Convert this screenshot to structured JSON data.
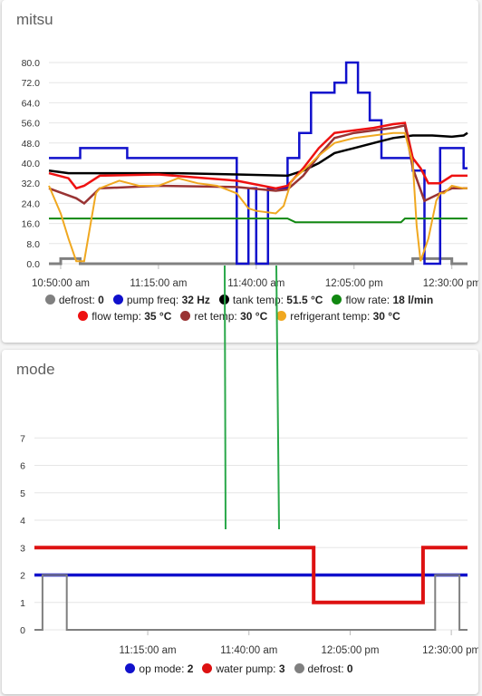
{
  "colors": {
    "defrost": "#808080",
    "pump_freq": "#1010cc",
    "tank_temp": "#000000",
    "flow_rate": "#118811",
    "flow_temp": "#ee1111",
    "ret_temp": "#993333",
    "refrigerant_temp": "#f0a820",
    "op_mode": "#1111cc",
    "water_pump": "#dd1111",
    "annotation": "#2aa84a"
  },
  "chart_data": [
    {
      "title": "mitsu",
      "type": "line",
      "x_unit": "minutes after 10:50:00 am",
      "xlim": [
        -3,
        104
      ],
      "ylim": [
        0,
        80
      ],
      "grid": true,
      "y_ticks": [
        "0.0",
        "8.0",
        "16.0",
        "24.0",
        "32.0",
        "40.0",
        "48.0",
        "56.0",
        "64.0",
        "72.0",
        "80.0"
      ],
      "x_ticks": [
        {
          "label": "10:50:00 am",
          "x": 0
        },
        {
          "label": "11:15:00 am",
          "x": 25
        },
        {
          "label": "11:40:00 am",
          "x": 50
        },
        {
          "label": "12:05:00 pm",
          "x": 75
        },
        {
          "label": "12:30:00 pm",
          "x": 100
        }
      ],
      "series": [
        {
          "name": "defrost",
          "value": "0",
          "color_key": "defrost",
          "width": 3,
          "step": true,
          "x": [
            -3,
            0,
            0,
            5,
            5,
            90,
            90,
            100,
            100,
            104
          ],
          "y": [
            0,
            0,
            2,
            2,
            0,
            0,
            2,
            2,
            0,
            0
          ]
        },
        {
          "name": "pump freq",
          "value": "32 Hz",
          "color_key": "pump_freq",
          "width": 2.5,
          "step": true,
          "x": [
            -3,
            5,
            5,
            17,
            17,
            45,
            45,
            48,
            48,
            50,
            50,
            53,
            53,
            58,
            58,
            61,
            61,
            64,
            64,
            70,
            70,
            73,
            73,
            76,
            76,
            79,
            79,
            82,
            82,
            90,
            90,
            93,
            93,
            97,
            97,
            103,
            103,
            104
          ],
          "y": [
            42,
            42,
            46,
            46,
            42,
            42,
            0,
            0,
            30,
            30,
            0,
            0,
            30,
            30,
            42,
            42,
            52,
            52,
            68,
            68,
            72,
            72,
            80,
            80,
            68,
            68,
            57,
            57,
            42,
            42,
            37,
            37,
            0,
            0,
            46,
            46,
            38,
            38
          ]
        },
        {
          "name": "tank temp",
          "value": "51.5 °C",
          "color_key": "tank_temp",
          "width": 2.5,
          "x": [
            -3,
            2,
            5,
            15,
            30,
            45,
            58,
            62,
            66,
            70,
            75,
            80,
            85,
            90,
            95,
            100,
            103,
            104
          ],
          "y": [
            37,
            36,
            36,
            36,
            36,
            35.5,
            35,
            37,
            40,
            44,
            46,
            48,
            50,
            51,
            51,
            50.5,
            51,
            52
          ]
        },
        {
          "name": "flow rate",
          "value": "18 l/min",
          "color_key": "flow_rate",
          "width": 2,
          "x": [
            -3,
            58,
            60,
            87,
            88,
            104
          ],
          "y": [
            18,
            18,
            16.5,
            16.5,
            18,
            18
          ]
        },
        {
          "name": "flow temp",
          "value": "35 °C",
          "color_key": "flow_temp",
          "width": 2.5,
          "x": [
            -3,
            2,
            4,
            6,
            10,
            25,
            45,
            55,
            58,
            62,
            66,
            70,
            75,
            80,
            85,
            88,
            90,
            92,
            94,
            97,
            100,
            103,
            104
          ],
          "y": [
            36,
            34,
            30,
            31,
            35,
            35.5,
            33,
            30,
            31,
            38,
            46,
            52,
            53,
            54,
            55.5,
            56,
            42,
            38,
            32,
            32,
            35,
            35,
            35
          ]
        },
        {
          "name": "ret temp",
          "value": "30 °C",
          "color_key": "ret_temp",
          "width": 2.5,
          "x": [
            -3,
            4,
            6,
            10,
            25,
            45,
            55,
            58,
            62,
            66,
            70,
            75,
            80,
            85,
            88,
            90,
            93,
            97,
            100,
            103,
            104
          ],
          "y": [
            30,
            26,
            24,
            30,
            31,
            30.5,
            29,
            29.5,
            35,
            43,
            50,
            52,
            53,
            54,
            55,
            38,
            25,
            28,
            30,
            30,
            30
          ]
        },
        {
          "name": "refrigerant temp",
          "value": "30 °C",
          "color_key": "refrigerant_temp",
          "width": 2,
          "x": [
            -3,
            0,
            2,
            4,
            6,
            7,
            9,
            10,
            15,
            20,
            25,
            30,
            35,
            40,
            45,
            48,
            50,
            55,
            57,
            59,
            62,
            66,
            70,
            75,
            80,
            85,
            88,
            90,
            91,
            92,
            94,
            96,
            97,
            98,
            100,
            103,
            104
          ],
          "y": [
            31,
            20,
            10,
            1,
            1,
            10,
            28,
            30,
            33,
            31,
            31,
            34,
            32,
            31,
            28,
            22,
            21,
            20,
            23,
            33,
            37,
            43,
            48,
            50,
            51,
            52,
            52,
            40,
            15,
            1,
            10,
            25,
            28,
            28,
            31,
            30,
            30
          ]
        }
      ]
    },
    {
      "title": "mode",
      "type": "line",
      "x_unit": "minutes after 10:50:00 am",
      "xlim": [
        -3,
        104
      ],
      "ylim": [
        0,
        8
      ],
      "grid": true,
      "y_ticks": [
        "0",
        "1",
        "2",
        "3",
        "4",
        "5",
        "6",
        "7"
      ],
      "x_ticks": [
        {
          "label": "11:15:00 am",
          "x": 25
        },
        {
          "label": "11:40:00 am",
          "x": 50
        },
        {
          "label": "12:05:00 pm",
          "x": 75
        },
        {
          "label": "12:30:00 pm",
          "x": 100
        }
      ],
      "series": [
        {
          "name": "op mode",
          "value": "2",
          "color_key": "op_mode",
          "width": 3.5,
          "step": true,
          "x": [
            -3,
            104
          ],
          "y": [
            2,
            2
          ]
        },
        {
          "name": "water pump",
          "value": "3",
          "color_key": "water_pump",
          "width": 4,
          "step": true,
          "x": [
            -3,
            66,
            66,
            93,
            93,
            104
          ],
          "y": [
            3,
            3,
            1,
            1,
            3,
            3
          ]
        },
        {
          "name": "defrost",
          "value": "0",
          "color_key": "defrost",
          "width": 2,
          "step": true,
          "x": [
            -3,
            -1,
            -1,
            5,
            5,
            96,
            96,
            102,
            102,
            104
          ],
          "y": [
            0,
            0,
            2,
            2,
            0,
            0,
            2,
            2,
            0,
            0
          ]
        }
      ]
    }
  ]
}
